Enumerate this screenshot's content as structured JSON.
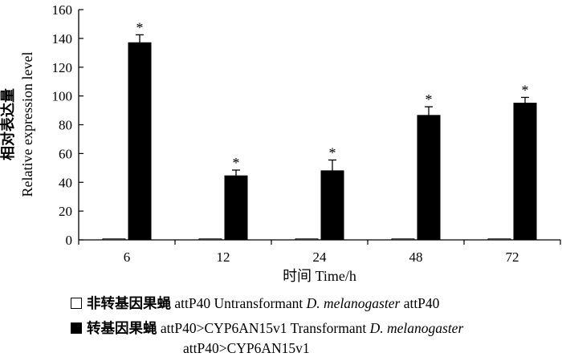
{
  "chart_data": {
    "type": "bar",
    "categories": [
      "6",
      "12",
      "24",
      "48",
      "72"
    ],
    "series": [
      {
        "name": "非转基因果蝇 attP40 Untransformant D. melanogaster attP40",
        "values": [
          0,
          0,
          0,
          0,
          0
        ],
        "errors": [
          0,
          0,
          0,
          0,
          0
        ],
        "color": "#ffffff"
      },
      {
        "name": "转基因果蝇 attP40>CYP6AN15v1 Transformant D. melanogaster attP40>CYP6AN15v1",
        "values": [
          137,
          44.5,
          48,
          86.5,
          95
        ],
        "errors": [
          5.5,
          4,
          7.5,
          6,
          4
        ],
        "color": "#000000"
      }
    ],
    "significance": [
      "*",
      "*",
      "*",
      "*",
      "*"
    ],
    "xlabel": "时间 Time/h",
    "ylabel_cn": "相对表达量",
    "ylabel_en": "Relative expression level",
    "ylim": [
      0,
      160
    ],
    "yticks": [
      0,
      20,
      40,
      60,
      80,
      100,
      120,
      140,
      160
    ],
    "grid": false,
    "legend_position": "bottom"
  },
  "legend": {
    "untransformed": {
      "cn": "非转基因果蝇",
      "en_prefix": "attP40 Untransformant",
      "species": "D. melanogaster",
      "en_suffix": "attP40"
    },
    "transformed": {
      "cn": "转基因果蝇",
      "en_prefix": "attP40>CYP6AN15v1 Transformant",
      "species": "D. melanogaster",
      "en_suffix": "attP40>CYP6AN15v1"
    }
  }
}
